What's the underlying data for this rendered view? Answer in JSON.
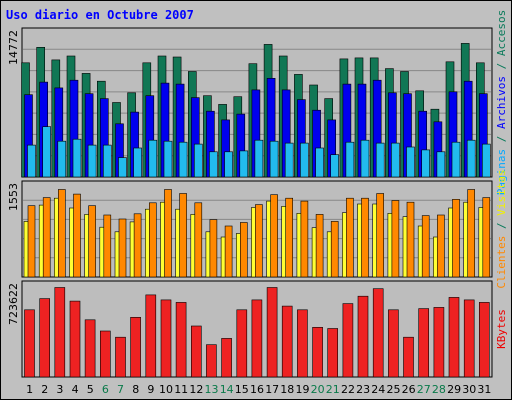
{
  "window": {
    "title": "Uso diario en Octubre 2007"
  },
  "colors": {
    "background": "#c0c0c0",
    "panel": "#bdbdbd",
    "grid": "#888888",
    "weekday": "#000000",
    "weekend": "#0a7a4a",
    "visitas_text": "#f0f000",
    "paginas_text": "#00a8ff",
    "archivos_text": "#0000ff",
    "accesos_text": "#0a7a5a"
  },
  "chart_data": [
    {
      "type": "bar",
      "title": "Uso diario en Octubre 2007",
      "panel": "hits",
      "ymax_label": "14772",
      "ylabel_parts": [
        {
          "text": "Paginas",
          "color": "#00a8ff"
        },
        {
          "text": " / ",
          "color": "#0a7a5a"
        },
        {
          "text": "Archivos",
          "color": "#0000ff"
        },
        {
          "text": " / ",
          "color": "#0a7a5a"
        },
        {
          "text": "Accesos",
          "color": "#0a7a5a"
        }
      ],
      "ylim": [
        0,
        14772
      ],
      "categories": [
        "1",
        "2",
        "3",
        "4",
        "5",
        "6",
        "7",
        "8",
        "9",
        "10",
        "11",
        "12",
        "13",
        "14",
        "15",
        "16",
        "17",
        "18",
        "19",
        "20",
        "21",
        "22",
        "23",
        "24",
        "25",
        "26",
        "27",
        "28",
        "29",
        "30",
        "31"
      ],
      "weekend_days": [
        "6",
        "7",
        "13",
        "14",
        "20",
        "21",
        "27",
        "28"
      ],
      "series": [
        {
          "name": "Accesos",
          "color": "#117755",
          "values": [
            11800,
            13400,
            12100,
            12500,
            10700,
            9900,
            7700,
            8700,
            11800,
            12500,
            12400,
            10900,
            8400,
            7500,
            8300,
            11700,
            13700,
            12500,
            10600,
            9500,
            8100,
            12200,
            12300,
            12300,
            11200,
            10900,
            8900,
            7000,
            11900,
            13800,
            11800
          ]
        },
        {
          "name": "Archivos",
          "color": "#0000ee",
          "values": [
            8500,
            9800,
            9200,
            10000,
            8600,
            8100,
            5500,
            6700,
            8400,
            9700,
            9600,
            8200,
            6800,
            5900,
            6500,
            9000,
            10200,
            9000,
            8000,
            6900,
            5900,
            9600,
            9600,
            10000,
            8700,
            8600,
            6800,
            5700,
            8800,
            9900,
            8600
          ]
        },
        {
          "name": "Paginas",
          "color": "#22bbee",
          "values": [
            3300,
            5200,
            3700,
            3900,
            3300,
            3300,
            2000,
            3000,
            3800,
            3700,
            3600,
            3400,
            2600,
            2600,
            2700,
            3800,
            3700,
            3500,
            3500,
            3000,
            2300,
            3600,
            3800,
            3500,
            3500,
            3100,
            2800,
            2600,
            3600,
            3800,
            3400
          ]
        }
      ]
    },
    {
      "type": "bar",
      "panel": "visits",
      "ymax_label": "1553",
      "ylabel_parts": [
        {
          "text": "Clientes",
          "color": "#ff8800"
        },
        {
          "text": " / ",
          "color": "#0a7a5a"
        },
        {
          "text": "Visitas",
          "color": "#f0f000"
        }
      ],
      "ylim": [
        0,
        1553
      ],
      "categories": [
        "1",
        "2",
        "3",
        "4",
        "5",
        "6",
        "7",
        "8",
        "9",
        "10",
        "11",
        "12",
        "13",
        "14",
        "15",
        "16",
        "17",
        "18",
        "19",
        "20",
        "21",
        "22",
        "23",
        "24",
        "25",
        "26",
        "27",
        "28",
        "29",
        "30",
        "31"
      ],
      "series": [
        {
          "name": "Visitas",
          "color": "#ffff33",
          "values": [
            960,
            1240,
            1360,
            1190,
            1080,
            860,
            780,
            950,
            1170,
            1290,
            1170,
            1080,
            780,
            690,
            750,
            1200,
            1310,
            1220,
            1100,
            850,
            780,
            1110,
            1260,
            1260,
            1100,
            1040,
            880,
            690,
            1190,
            1290,
            1200
          ]
        },
        {
          "name": "Clientes",
          "color": "#ff8800",
          "values": [
            1230,
            1370,
            1510,
            1430,
            1230,
            1070,
            1000,
            1090,
            1280,
            1510,
            1440,
            1280,
            990,
            880,
            940,
            1250,
            1420,
            1360,
            1310,
            1080,
            960,
            1360,
            1360,
            1440,
            1320,
            1290,
            1060,
            1070,
            1340,
            1510,
            1370
          ]
        }
      ]
    },
    {
      "type": "bar",
      "panel": "kbytes",
      "ymax_label": "723622",
      "ylabel_parts": [
        {
          "text": "KBytes",
          "color": "#ee0000"
        }
      ],
      "ylim": [
        0,
        723622
      ],
      "categories": [
        "1",
        "2",
        "3",
        "4",
        "5",
        "6",
        "7",
        "8",
        "9",
        "10",
        "11",
        "12",
        "13",
        "14",
        "15",
        "16",
        "17",
        "18",
        "19",
        "20",
        "21",
        "22",
        "23",
        "24",
        "25",
        "26",
        "27",
        "28",
        "29",
        "30",
        "31"
      ],
      "series": [
        {
          "name": "KBytes",
          "color": "#ee2222",
          "values": [
            540000,
            630000,
            720000,
            610000,
            460000,
            370000,
            320000,
            480000,
            660000,
            620000,
            600000,
            410000,
            260000,
            310000,
            540000,
            620000,
            720000,
            570000,
            540000,
            400000,
            390000,
            590000,
            650000,
            710000,
            540000,
            320000,
            550000,
            560000,
            640000,
            620000,
            600000
          ]
        }
      ]
    }
  ]
}
